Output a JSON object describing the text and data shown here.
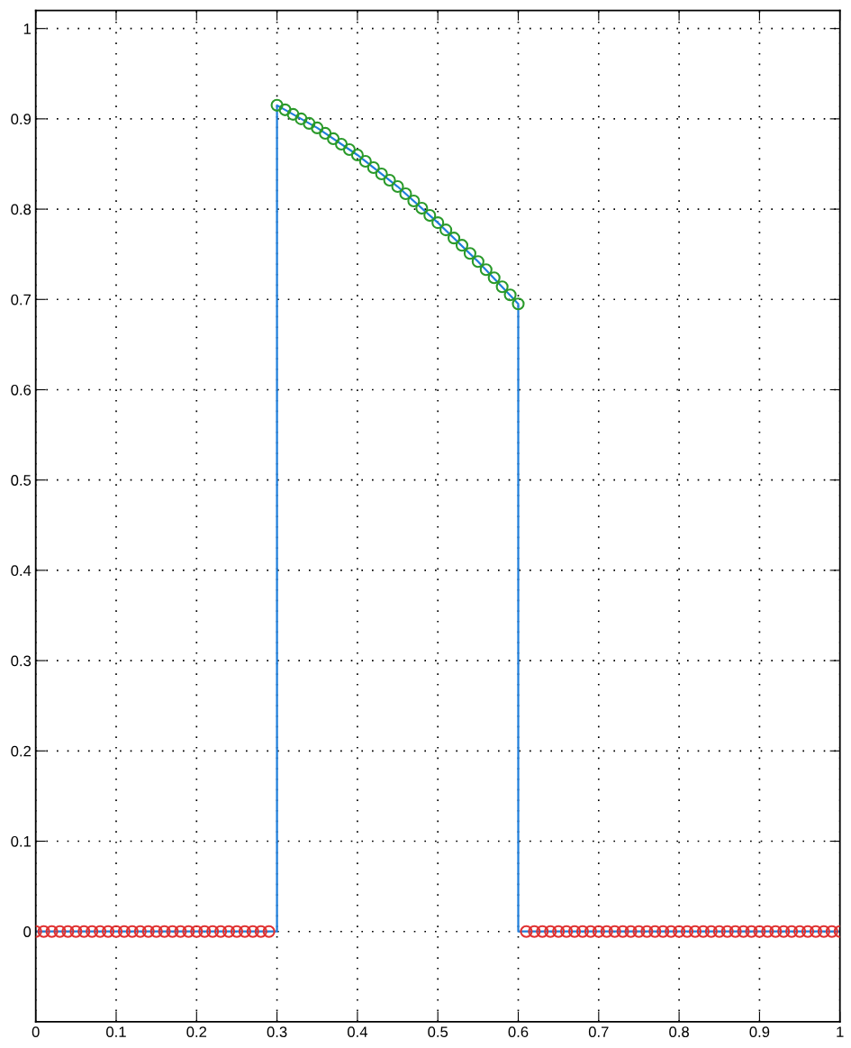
{
  "chart_data": {
    "type": "line",
    "xlim": [
      0,
      1
    ],
    "ylim": [
      -0.1,
      1.02
    ],
    "xticks": [
      0,
      0.1,
      0.2,
      0.3,
      0.4,
      0.5,
      0.6,
      0.7,
      0.8,
      0.9,
      1
    ],
    "yticks": [
      0,
      0.1,
      0.2,
      0.3,
      0.4,
      0.5,
      0.6,
      0.7,
      0.8,
      0.9,
      1
    ],
    "grid": true,
    "marker": "none",
    "line_style": "solid",
    "series": [
      {
        "color": "#1f7fdc",
        "x": [
          0,
          0.3,
          0.3,
          0.35,
          0.4,
          0.45,
          0.5,
          0.55,
          0.6,
          0.6,
          1
        ],
        "values": [
          0,
          0,
          0.915,
          0.89,
          0.86,
          0.825,
          0.785,
          0.742,
          0.695,
          0,
          0
        ]
      },
      {
        "color": "#2a9a2a",
        "type": "scatter",
        "marker": "circle",
        "x": [
          0.3,
          0.31,
          0.32,
          0.33,
          0.34,
          0.35,
          0.36,
          0.37,
          0.38,
          0.39,
          0.4,
          0.41,
          0.42,
          0.43,
          0.44,
          0.45,
          0.46,
          0.47,
          0.48,
          0.49,
          0.5,
          0.51,
          0.52,
          0.53,
          0.54,
          0.55,
          0.56,
          0.57,
          0.58,
          0.59,
          0.6
        ],
        "values": [
          0.915,
          0.91,
          0.905,
          0.9,
          0.895,
          0.89,
          0.884,
          0.878,
          0.872,
          0.866,
          0.86,
          0.853,
          0.846,
          0.839,
          0.832,
          0.825,
          0.817,
          0.809,
          0.801,
          0.793,
          0.785,
          0.777,
          0.768,
          0.76,
          0.751,
          0.742,
          0.733,
          0.724,
          0.714,
          0.705,
          0.695
        ]
      },
      {
        "color": "#e03030",
        "type": "scatter",
        "marker": "circle",
        "x": [
          0,
          0.01,
          0.02,
          0.03,
          0.04,
          0.05,
          0.06,
          0.07,
          0.08,
          0.09,
          0.1,
          0.11,
          0.12,
          0.13,
          0.14,
          0.15,
          0.16,
          0.17,
          0.18,
          0.19,
          0.2,
          0.21,
          0.22,
          0.23,
          0.24,
          0.25,
          0.26,
          0.27,
          0.28,
          0.29,
          0.61,
          0.62,
          0.63,
          0.64,
          0.65,
          0.66,
          0.67,
          0.68,
          0.69,
          0.7,
          0.71,
          0.72,
          0.73,
          0.74,
          0.75,
          0.76,
          0.77,
          0.78,
          0.79,
          0.8,
          0.81,
          0.82,
          0.83,
          0.84,
          0.85,
          0.86,
          0.87,
          0.88,
          0.89,
          0.9,
          0.91,
          0.92,
          0.93,
          0.94,
          0.95,
          0.96,
          0.97,
          0.98,
          0.99,
          1
        ],
        "values": [
          0,
          0,
          0,
          0,
          0,
          0,
          0,
          0,
          0,
          0,
          0,
          0,
          0,
          0,
          0,
          0,
          0,
          0,
          0,
          0,
          0,
          0,
          0,
          0,
          0,
          0,
          0,
          0,
          0,
          0,
          0,
          0,
          0,
          0,
          0,
          0,
          0,
          0,
          0,
          0,
          0,
          0,
          0,
          0,
          0,
          0,
          0,
          0,
          0,
          0,
          0,
          0,
          0,
          0,
          0,
          0,
          0,
          0,
          0,
          0,
          0,
          0,
          0,
          0,
          0,
          0,
          0,
          0,
          0,
          0
        ]
      }
    ]
  }
}
